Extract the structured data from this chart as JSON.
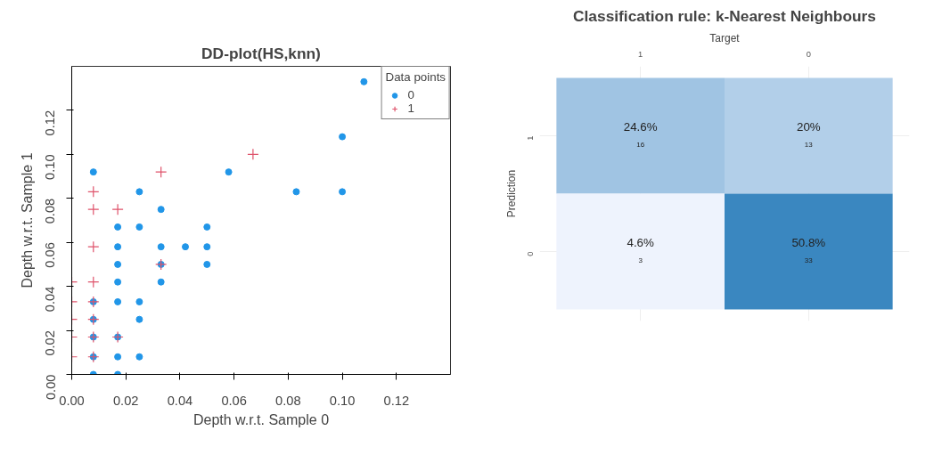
{
  "chart_data": [
    {
      "type": "scatter",
      "title": "DD-plot(HS,knn)",
      "xlabel": "Depth w.r.t. Sample 0",
      "ylabel": "Depth w.r.t. Sample 1",
      "legend_title": "Data points",
      "legend": "top right",
      "xlim": [
        0,
        0.14
      ],
      "ylim": [
        0,
        0.14
      ],
      "xticks": [
        {
          "value": 0,
          "label": "0.00"
        },
        0.02,
        0.04,
        0.06,
        0.08,
        {
          "value": 0.1,
          "label": "0.10"
        },
        0.12
      ],
      "yticks": [
        {
          "value": 0,
          "label": "0.00"
        },
        0.02,
        0.04,
        0.06,
        0.08,
        {
          "value": 0.1,
          "label": "0.10"
        },
        0.12
      ],
      "series": [
        {
          "type": "scatter",
          "name": "0",
          "color": "#2196e8",
          "marker": "circle",
          "x": [
            0.108,
            0.1,
            0.008,
            0.025,
            0.033,
            0.017,
            0.025,
            0.05,
            0.058,
            0.083,
            0.1,
            0.017,
            0.033,
            0.042,
            0.05,
            0.017,
            0.033,
            0.05,
            0.017,
            0.033,
            0.008,
            0.017,
            0.025,
            0.008,
            0.025,
            0.008,
            0.017,
            0.008,
            0.017,
            0.025,
            0.008,
            0.017
          ],
          "values": [
            0.133,
            0.108,
            0.092,
            0.083,
            0.075,
            0.067,
            0.067,
            0.067,
            0.092,
            0.083,
            0.083,
            0.058,
            0.058,
            0.058,
            0.058,
            0.05,
            0.05,
            0.05,
            0.042,
            0.042,
            0.033,
            0.033,
            0.033,
            0.025,
            0.025,
            0.017,
            0.017,
            0.008,
            0.008,
            0.008,
            0,
            0
          ]
        },
        {
          "type": "scatter",
          "name": "1",
          "color": "#df536b",
          "marker": "cross",
          "x": [
            0.067,
            0.033,
            0.008,
            0.008,
            0.017,
            0.008,
            0.033,
            0,
            0.008,
            0,
            0.008,
            0,
            0.008,
            0,
            0.008,
            0.017,
            0,
            0.008
          ],
          "values": [
            0.1,
            0.092,
            0.083,
            0.075,
            0.075,
            0.058,
            0.05,
            0.042,
            0.042,
            0.033,
            0.033,
            0.025,
            0.025,
            0.017,
            0.017,
            0.017,
            0.008,
            0.008
          ]
        }
      ]
    },
    {
      "type": "heatmap",
      "title": "Classification rule: k-Nearest Neighbours",
      "xlabel": "Target",
      "ylabel": "Prediction",
      "categories": [
        "1",
        "0"
      ],
      "y_categories": [
        "1",
        "0"
      ],
      "cells": [
        [
          24.6,
          20
        ],
        [
          4.6,
          50.8
        ]
      ],
      "cell_labels": [
        [
          "24.6%",
          "20%"
        ],
        [
          "4.6%",
          "50.8%"
        ]
      ],
      "annotations": [
        "16",
        "13",
        "3",
        "33"
      ],
      "colors": [
        "#eef3fd",
        "#3a87c0"
      ],
      "grid": true
    }
  ]
}
